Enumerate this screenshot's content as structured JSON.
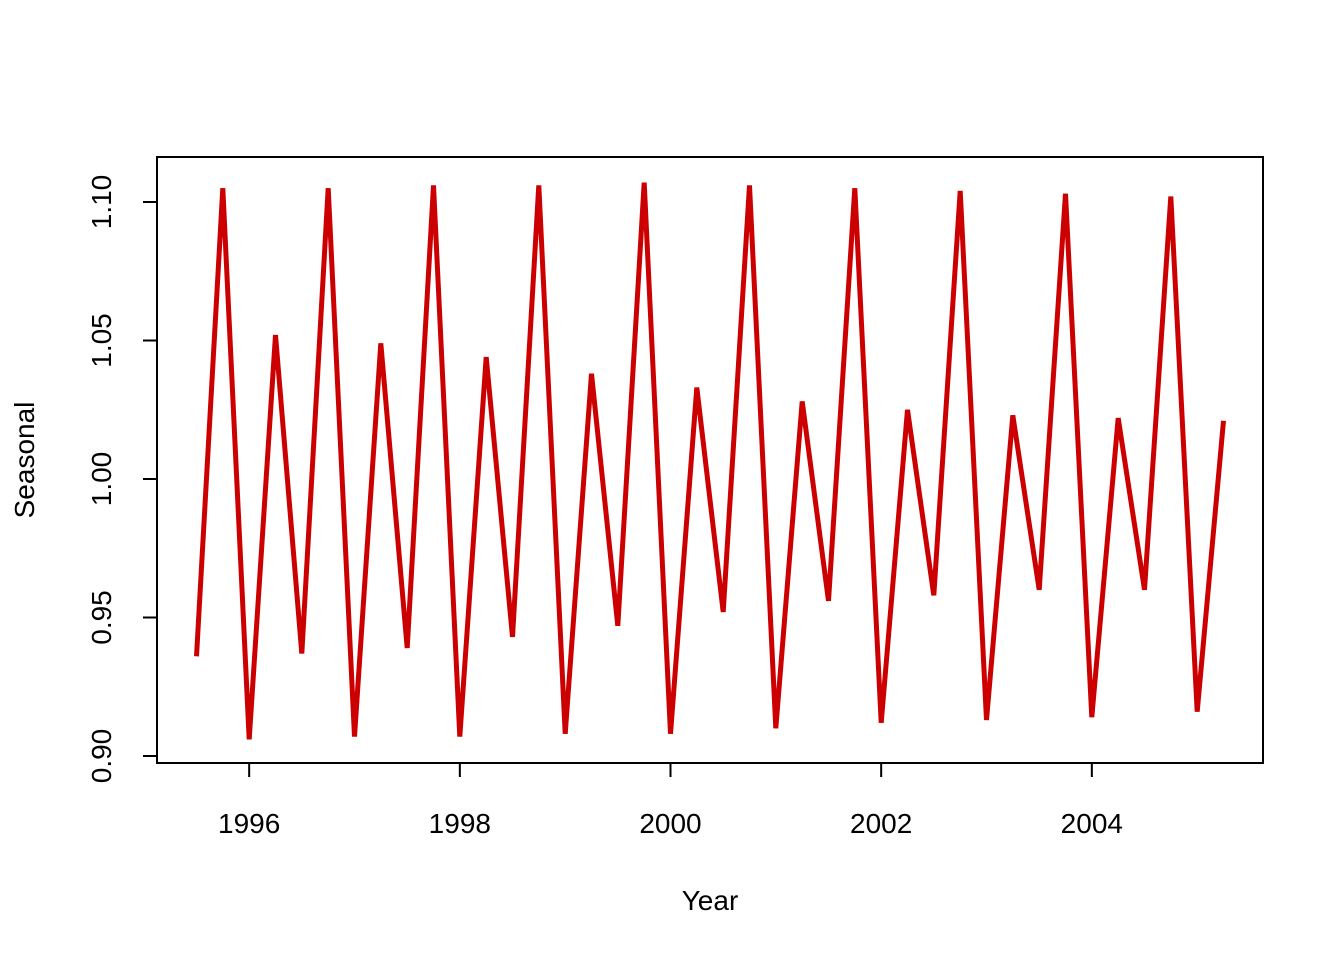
{
  "chart_data": {
    "type": "line",
    "title": "",
    "xlabel": "Year",
    "ylabel": "Seasonal",
    "xlim": [
      1995.125,
      2005.625
    ],
    "ylim": [
      0.9,
      1.11
    ],
    "x_ticks": [
      1996,
      1998,
      2000,
      2002,
      2004
    ],
    "x_tick_labels": [
      "1996",
      "1998",
      "2000",
      "2002",
      "2004"
    ],
    "y_ticks": [
      0.9,
      0.95,
      1.0,
      1.05,
      1.1
    ],
    "y_tick_labels": [
      "0.90",
      "0.95",
      "1.00",
      "1.05",
      "1.10"
    ],
    "grid": false,
    "legend": "none",
    "series_color": "#cc0000",
    "x": [
      1995.5,
      1995.75,
      1996.0,
      1996.25,
      1996.5,
      1996.75,
      1997.0,
      1997.25,
      1997.5,
      1997.75,
      1998.0,
      1998.25,
      1998.5,
      1998.75,
      1999.0,
      1999.25,
      1999.5,
      1999.75,
      2000.0,
      2000.25,
      2000.5,
      2000.75,
      2001.0,
      2001.25,
      2001.5,
      2001.75,
      2002.0,
      2002.25,
      2002.5,
      2002.75,
      2003.0,
      2003.25,
      2003.5,
      2003.75,
      2004.0,
      2004.25,
      2004.5,
      2004.75,
      2005.0,
      2005.25
    ],
    "series": [
      {
        "values": [
          0.936,
          1.105,
          0.906,
          1.052,
          0.937,
          1.105,
          0.907,
          1.049,
          0.939,
          1.106,
          0.907,
          1.044,
          0.943,
          1.106,
          0.908,
          1.038,
          0.947,
          1.107,
          0.908,
          1.033,
          0.952,
          1.106,
          0.91,
          1.028,
          0.956,
          1.105,
          0.912,
          1.025,
          0.958,
          1.104,
          0.913,
          1.023,
          0.96,
          1.103,
          0.914,
          1.022,
          0.96,
          1.102,
          0.916,
          1.021
        ]
      }
    ]
  }
}
